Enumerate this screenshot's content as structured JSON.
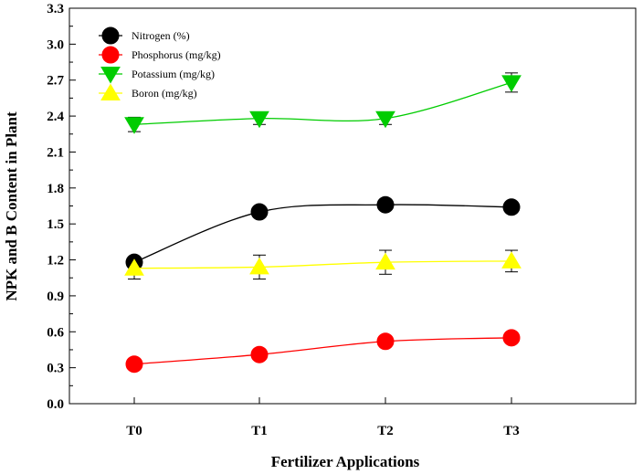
{
  "chart_data": {
    "type": "line",
    "title": "",
    "xlabel": "Fertilizer Applications",
    "ylabel": "NPK and B Content in Plant",
    "categories": [
      "T0",
      "T1",
      "T2",
      "T3"
    ],
    "ylim": [
      0.0,
      3.3
    ],
    "yticks": [
      "0.0",
      "0.3",
      "0.6",
      "0.9",
      "1.2",
      "1.5",
      "1.8",
      "2.1",
      "2.4",
      "2.7",
      "3.0",
      "3.3"
    ],
    "legend_position": "top-left",
    "grid": false,
    "series": [
      {
        "name": "Nitrogen (%)",
        "color": "#000000",
        "marker": "circle",
        "values": [
          1.18,
          1.6,
          1.66,
          1.64
        ],
        "errors": [
          0.03,
          0.03,
          0.03,
          0.03
        ]
      },
      {
        "name": "Phosphorus (mg/kg)",
        "color": "#ff0000",
        "marker": "circle",
        "values": [
          0.33,
          0.41,
          0.52,
          0.55
        ],
        "errors": [
          0.02,
          0.02,
          0.02,
          0.02
        ]
      },
      {
        "name": "Potassium (mg/kg)",
        "color": "#00cc00",
        "marker": "triangle-down",
        "values": [
          2.33,
          2.38,
          2.38,
          2.68
        ],
        "errors": [
          0.06,
          0.05,
          0.05,
          0.08
        ]
      },
      {
        "name": "Boron (mg/kg)",
        "color": "#ffff00",
        "marker": "triangle-up",
        "values": [
          1.13,
          1.14,
          1.18,
          1.19
        ],
        "errors": [
          0.09,
          0.1,
          0.1,
          0.09
        ]
      }
    ]
  }
}
